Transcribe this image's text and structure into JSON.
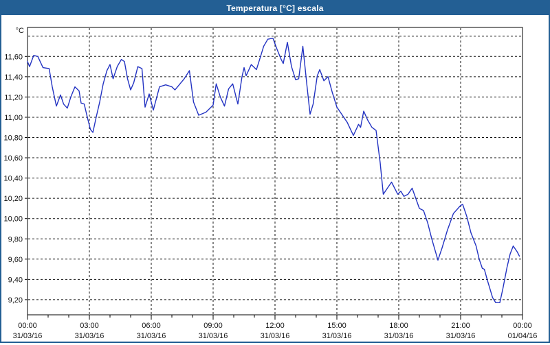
{
  "window": {
    "title": "Temperatura [°C] escala"
  },
  "colors": {
    "titlebar_bg": "#235F94",
    "window_border": "#235F94",
    "series_line": "#2333C2",
    "grid": "#111111",
    "plot_bg": "#FFFFFF",
    "axis_text": "#111111"
  },
  "chart_data": {
    "type": "line",
    "title": "Temperatura [°C] escala",
    "unit_label": "°C",
    "grid": "dashed",
    "legend": "none",
    "x_axis": {
      "range_hours": [
        0,
        24
      ],
      "major_tick_hours": [
        0,
        3,
        6,
        9,
        12,
        15,
        18,
        21,
        24
      ],
      "tick_time_labels": [
        "00:00",
        "03:00",
        "06:00",
        "09:00",
        "12:00",
        "15:00",
        "18:00",
        "21:00",
        "00:00"
      ],
      "tick_date_labels": [
        "31/03/16",
        "31/03/16",
        "31/03/16",
        "31/03/16",
        "31/03/16",
        "31/03/16",
        "31/03/16",
        "31/03/16",
        "01/04/16"
      ],
      "minor_tick_every_hours": 1
    },
    "y_axis": {
      "tick_values": [
        9.2,
        9.4,
        9.6,
        9.8,
        10.0,
        10.2,
        10.4,
        10.6,
        10.8,
        11.0,
        11.2,
        11.4,
        11.6
      ],
      "tick_labels": [
        "9,20",
        "9,40",
        "9,60",
        "9,80",
        "10,00",
        "10,20",
        "10,40",
        "10,60",
        "10,80",
        "11,00",
        "11,20",
        "11,40",
        "11,60"
      ],
      "grid_values": [
        9.2,
        9.4,
        9.6,
        9.8,
        10.0,
        10.2,
        10.4,
        10.6,
        10.8,
        11.0,
        11.2,
        11.4,
        11.6,
        11.8
      ],
      "visible_range": [
        9.05,
        11.89
      ]
    },
    "series": [
      {
        "name": "Temperatura",
        "points": [
          [
            0.0,
            11.55
          ],
          [
            0.1,
            11.5
          ],
          [
            0.3,
            11.61
          ],
          [
            0.5,
            11.6
          ],
          [
            0.75,
            11.49
          ],
          [
            1.05,
            11.48
          ],
          [
            1.2,
            11.3
          ],
          [
            1.4,
            11.11
          ],
          [
            1.6,
            11.22
          ],
          [
            1.75,
            11.13
          ],
          [
            1.93,
            11.09
          ],
          [
            2.1,
            11.2
          ],
          [
            2.3,
            11.3
          ],
          [
            2.5,
            11.26
          ],
          [
            2.6,
            11.14
          ],
          [
            2.75,
            11.13
          ],
          [
            2.9,
            11.0
          ],
          [
            3.05,
            10.88
          ],
          [
            3.17,
            10.85
          ],
          [
            3.33,
            11.0
          ],
          [
            3.5,
            11.15
          ],
          [
            3.67,
            11.33
          ],
          [
            3.85,
            11.46
          ],
          [
            4.0,
            11.52
          ],
          [
            4.15,
            11.38
          ],
          [
            4.35,
            11.5
          ],
          [
            4.55,
            11.57
          ],
          [
            4.7,
            11.55
          ],
          [
            4.85,
            11.38
          ],
          [
            5.0,
            11.27
          ],
          [
            5.15,
            11.34
          ],
          [
            5.35,
            11.5
          ],
          [
            5.55,
            11.48
          ],
          [
            5.7,
            11.1
          ],
          [
            5.9,
            11.23
          ],
          [
            6.1,
            11.07
          ],
          [
            6.4,
            11.3
          ],
          [
            6.7,
            11.32
          ],
          [
            7.0,
            11.3
          ],
          [
            7.15,
            11.27
          ],
          [
            7.6,
            11.38
          ],
          [
            7.85,
            11.46
          ],
          [
            8.05,
            11.15
          ],
          [
            8.3,
            11.02
          ],
          [
            8.65,
            11.05
          ],
          [
            9.0,
            11.12
          ],
          [
            9.15,
            11.33
          ],
          [
            9.35,
            11.2
          ],
          [
            9.55,
            11.11
          ],
          [
            9.75,
            11.28
          ],
          [
            9.95,
            11.33
          ],
          [
            10.2,
            11.13
          ],
          [
            10.4,
            11.4
          ],
          [
            10.5,
            11.49
          ],
          [
            10.6,
            11.41
          ],
          [
            10.85,
            11.52
          ],
          [
            11.1,
            11.47
          ],
          [
            11.3,
            11.6
          ],
          [
            11.45,
            11.7
          ],
          [
            11.65,
            11.77
          ],
          [
            11.9,
            11.78
          ],
          [
            12.1,
            11.67
          ],
          [
            12.3,
            11.57
          ],
          [
            12.4,
            11.53
          ],
          [
            12.6,
            11.74
          ],
          [
            12.8,
            11.5
          ],
          [
            13.0,
            11.37
          ],
          [
            13.15,
            11.38
          ],
          [
            13.35,
            11.7
          ],
          [
            13.55,
            11.31
          ],
          [
            13.7,
            11.03
          ],
          [
            13.85,
            11.13
          ],
          [
            14.05,
            11.41
          ],
          [
            14.17,
            11.47
          ],
          [
            14.37,
            11.36
          ],
          [
            14.57,
            11.4
          ],
          [
            14.77,
            11.25
          ],
          [
            15.0,
            11.1
          ],
          [
            15.2,
            11.04
          ],
          [
            15.5,
            10.95
          ],
          [
            15.8,
            10.82
          ],
          [
            16.05,
            10.93
          ],
          [
            16.15,
            10.9
          ],
          [
            16.3,
            11.06
          ],
          [
            16.5,
            10.97
          ],
          [
            16.7,
            10.9
          ],
          [
            16.9,
            10.87
          ],
          [
            17.1,
            10.55
          ],
          [
            17.25,
            10.24
          ],
          [
            17.45,
            10.3
          ],
          [
            17.65,
            10.36
          ],
          [
            17.95,
            10.24
          ],
          [
            18.1,
            10.27
          ],
          [
            18.25,
            10.22
          ],
          [
            18.45,
            10.24
          ],
          [
            18.65,
            10.3
          ],
          [
            19.0,
            10.1
          ],
          [
            19.2,
            10.08
          ],
          [
            19.4,
            9.96
          ],
          [
            19.6,
            9.8
          ],
          [
            19.9,
            9.59
          ],
          [
            20.1,
            9.71
          ],
          [
            20.35,
            9.88
          ],
          [
            20.65,
            10.05
          ],
          [
            21.0,
            10.13
          ],
          [
            21.1,
            10.14
          ],
          [
            21.3,
            10.02
          ],
          [
            21.5,
            9.86
          ],
          [
            21.75,
            9.73
          ],
          [
            21.9,
            9.6
          ],
          [
            22.05,
            9.51
          ],
          [
            22.15,
            9.5
          ],
          [
            22.3,
            9.39
          ],
          [
            22.55,
            9.22
          ],
          [
            22.7,
            9.17
          ],
          [
            22.9,
            9.17
          ],
          [
            23.05,
            9.31
          ],
          [
            23.25,
            9.52
          ],
          [
            23.4,
            9.65
          ],
          [
            23.55,
            9.73
          ],
          [
            23.75,
            9.67
          ],
          [
            23.85,
            9.63
          ]
        ]
      }
    ]
  }
}
